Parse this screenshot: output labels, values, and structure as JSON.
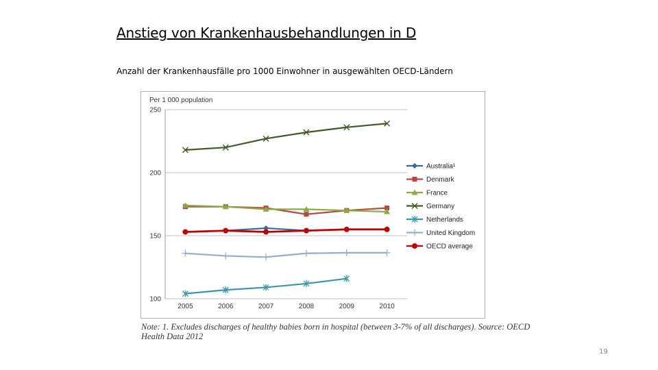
{
  "slide": {
    "title": "Anstieg von Krankenhausbehandlungen in D",
    "subtitle": "Anzahl der Krankenhausfälle pro 1000 Einwohner in ausgewählten OECD-Ländern",
    "note": "Note: 1. Excludes discharges of healthy babies born in hospital (between 3-7% of all discharges). Source: OECD Health Data 2012",
    "page_number": "19"
  },
  "chart_data": {
    "type": "line",
    "title": "",
    "ylabel": "Per 1 000 population",
    "xlabel": "",
    "categories": [
      "2005",
      "2006",
      "2007",
      "2008",
      "2009",
      "2010"
    ],
    "ylim": [
      100,
      250
    ],
    "yticks": [
      "100",
      "150",
      "200",
      "250"
    ],
    "grid": "horizontal",
    "legend_position": "right",
    "series": [
      {
        "name": "Australia¹",
        "color": "#3a6a9a",
        "marker": "diamond",
        "values": [
          153,
          154,
          156,
          154,
          155,
          null
        ]
      },
      {
        "name": "Denmark",
        "color": "#b5483f",
        "marker": "square",
        "values": [
          173,
          173,
          172,
          167,
          170,
          172
        ]
      },
      {
        "name": "France",
        "color": "#8aab44",
        "marker": "triangle",
        "values": [
          174,
          173,
          171,
          171,
          170,
          169
        ]
      },
      {
        "name": "Germany",
        "color": "#3f5a24",
        "marker": "x",
        "values": [
          218,
          220,
          227,
          232,
          236,
          239
        ]
      },
      {
        "name": "Netherlands",
        "color": "#3a96aa",
        "marker": "asterisk",
        "values": [
          104,
          107,
          109,
          112,
          116,
          null
        ]
      },
      {
        "name": "United Kingdom",
        "color": "#94aed0",
        "marker": "plus",
        "values": [
          136,
          134,
          133,
          136,
          136.5,
          136.5
        ]
      },
      {
        "name": "OECD average",
        "color": "#c00000",
        "marker": "circle",
        "values": [
          153,
          154,
          153,
          154,
          155,
          155
        ]
      }
    ]
  }
}
